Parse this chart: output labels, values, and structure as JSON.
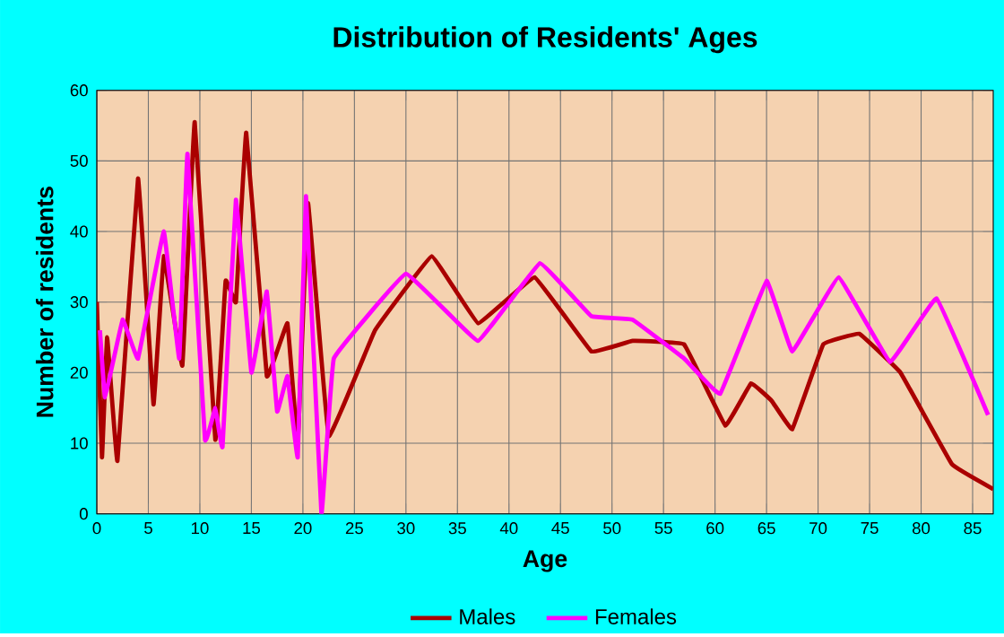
{
  "chart_data": {
    "type": "line",
    "title": "Distribution of Residents' Ages",
    "xlabel": "Age",
    "ylabel": "Number of residents",
    "xlim": [
      0,
      87
    ],
    "ylim": [
      0,
      60
    ],
    "xticks": [
      0,
      5,
      10,
      15,
      20,
      25,
      30,
      35,
      40,
      45,
      50,
      55,
      60,
      65,
      70,
      75,
      80,
      85
    ],
    "yticks": [
      0,
      10,
      20,
      30,
      40,
      50,
      60
    ],
    "grid": true,
    "legend": "bottom",
    "series": [
      {
        "name": "Males",
        "color": "#aa0000",
        "x": [
          0,
          0.5,
          1,
          2,
          4,
          5.5,
          6.5,
          8.3,
          9.5,
          11.5,
          12.5,
          13.5,
          14.5,
          16.5,
          18.5,
          19.5,
          20.5,
          22.5,
          27,
          32.5,
          37,
          42.5,
          48,
          52,
          57,
          61,
          63.5,
          65.5,
          67.5,
          70.5,
          74,
          78,
          83,
          87
        ],
        "values": [
          30,
          8,
          25,
          7.5,
          47.5,
          15.5,
          36.5,
          21,
          55.5,
          10.5,
          33,
          30,
          54,
          19.5,
          27,
          10,
          44,
          11,
          26,
          36.5,
          27,
          33.5,
          23,
          24.5,
          24,
          12.5,
          18.5,
          16,
          12,
          24,
          25.5,
          20,
          7,
          3.5
        ]
      },
      {
        "name": "Females",
        "color": "#ff00ff",
        "x": [
          0.3,
          0.8,
          2.5,
          4,
          6.5,
          8,
          8.8,
          10.5,
          11.5,
          12.2,
          13.5,
          15,
          16.5,
          17.5,
          18.5,
          19.5,
          20.3,
          21.8,
          23,
          30,
          37,
          43,
          48,
          52,
          57,
          60.5,
          65,
          67.5,
          72,
          77,
          81.5,
          86.5
        ],
        "values": [
          26,
          16.5,
          27.5,
          22,
          40,
          22,
          51,
          10.5,
          15,
          9.5,
          44.5,
          20,
          31.5,
          14.5,
          19.5,
          8,
          45,
          0,
          22,
          34,
          24.5,
          35.5,
          28,
          27.5,
          22,
          17,
          33,
          23,
          33.5,
          21.5,
          30.5,
          14
        ]
      }
    ]
  }
}
